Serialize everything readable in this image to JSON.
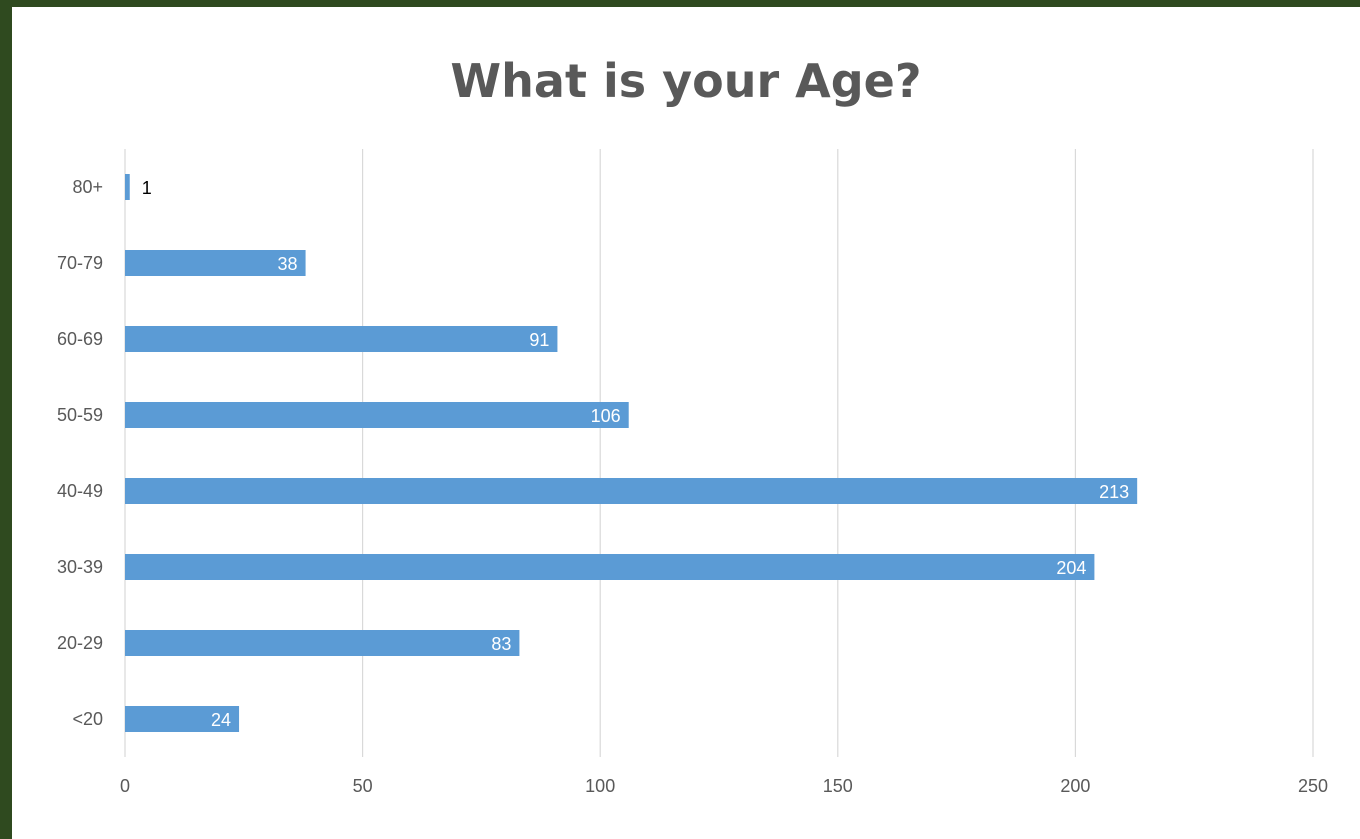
{
  "chart_data": {
    "type": "bar",
    "orientation": "horizontal",
    "title": "What is your Age?",
    "xlabel": "",
    "ylabel": "",
    "categories": [
      "<20",
      "20-29",
      "30-39",
      "40-49",
      "50-59",
      "60-69",
      "70-79",
      "80+"
    ],
    "values": [
      24,
      83,
      204,
      213,
      106,
      91,
      38,
      1
    ],
    "xlim": [
      0,
      250
    ],
    "x_ticks": [
      "0",
      "50",
      "100",
      "150",
      "200",
      "250"
    ],
    "grid": "vertical",
    "legend": "none",
    "data_labels": [
      "24",
      "83",
      "204",
      "213",
      "106",
      "91",
      "38",
      "1"
    ],
    "colors": {
      "bar": "#5b9bd5",
      "grid": "#d9d9d9",
      "text": "#595959",
      "background_frame": "#2f4a1f",
      "panel": "#ffffff"
    }
  }
}
